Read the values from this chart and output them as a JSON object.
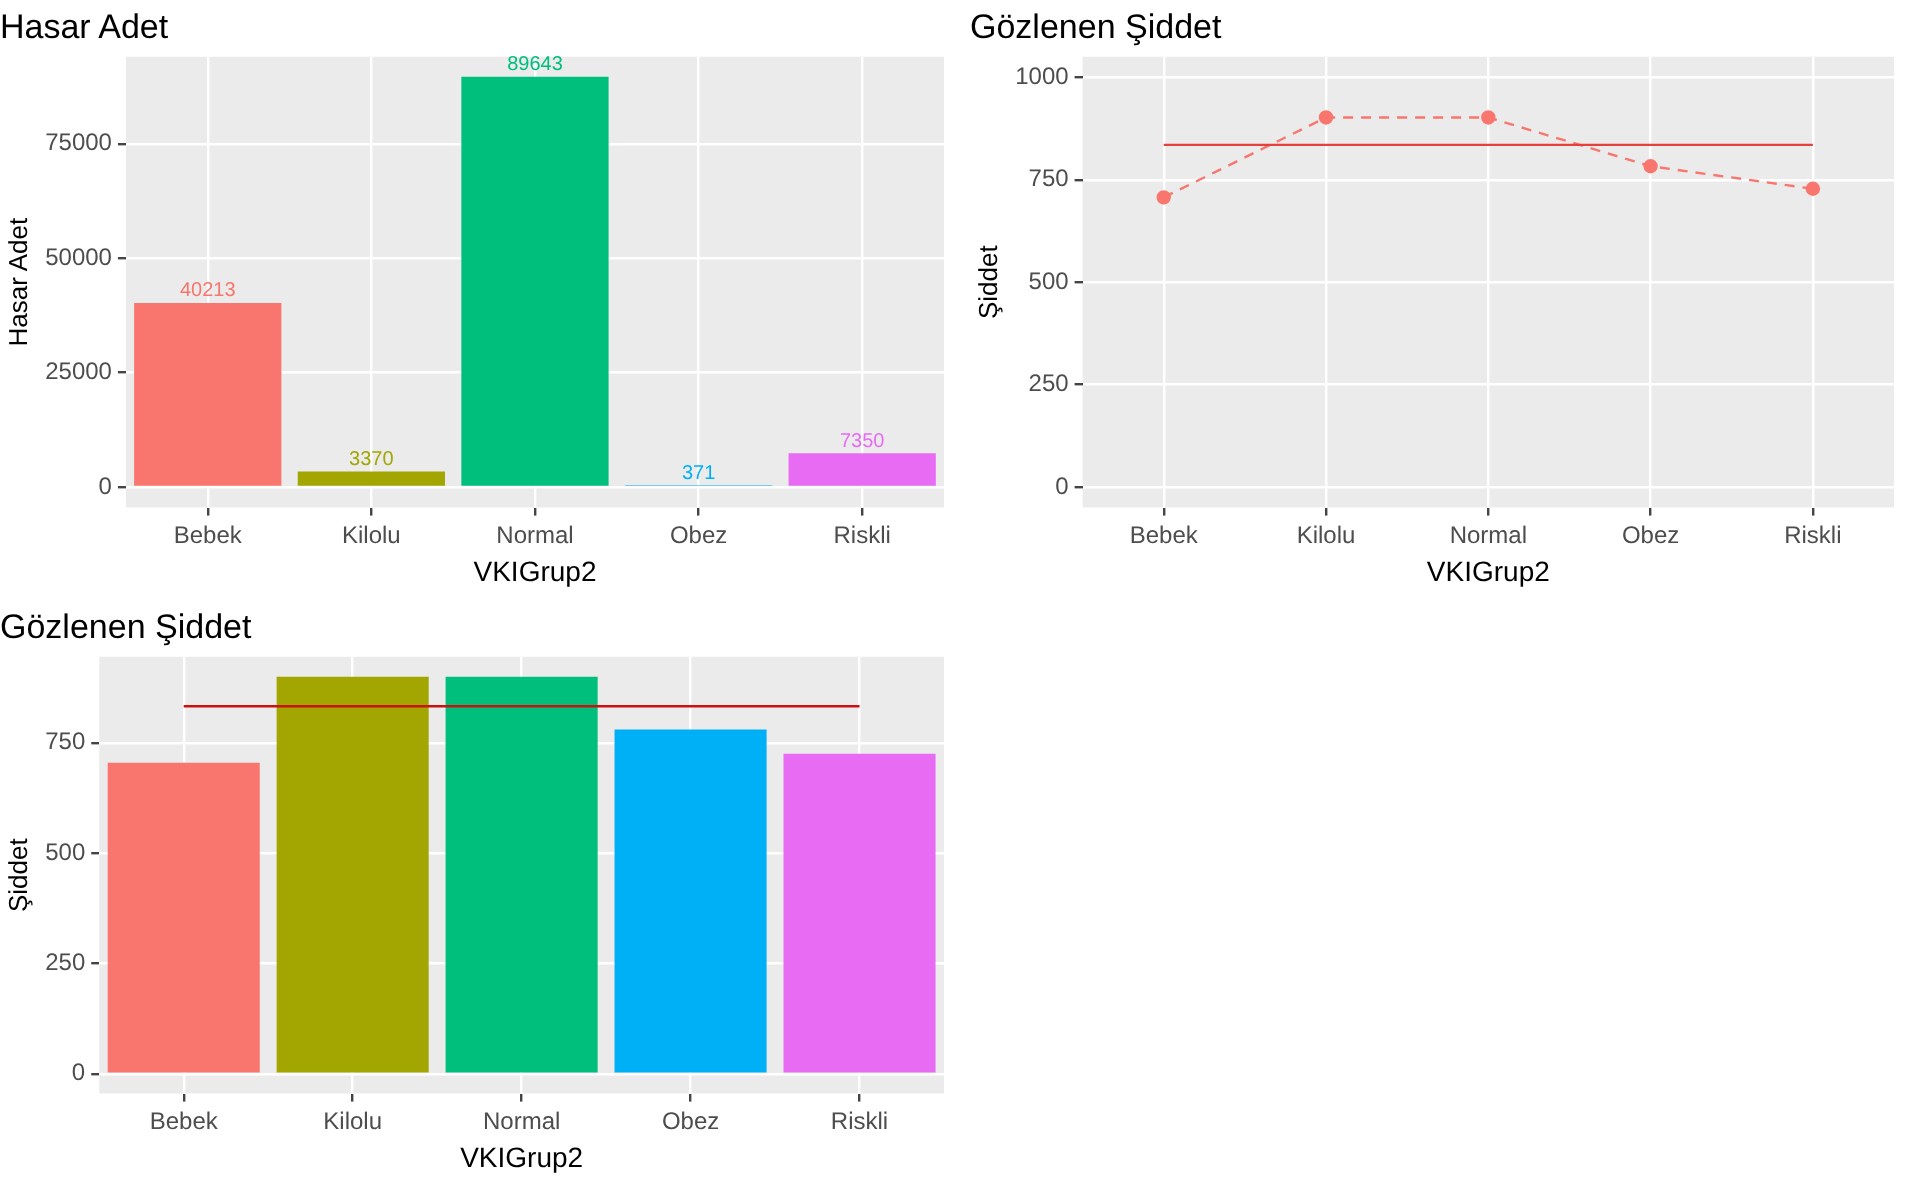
{
  "chart_data": [
    {
      "type": "bar",
      "title": "Hasar Adet",
      "xlabel": "VKIGrup2",
      "ylabel": "Hasar Adet",
      "categories": [
        "Bebek",
        "Kilolu",
        "Normal",
        "Obez",
        "Riskli"
      ],
      "values": [
        40213,
        3370,
        89643,
        371,
        7350
      ],
      "colors": [
        "#f8766d",
        "#a3a500",
        "#00bf7d",
        "#00b0f6",
        "#e76bf3"
      ],
      "data_labels": true,
      "ylim": [
        -4500,
        94000
      ],
      "yticks": [
        0,
        25000,
        50000,
        75000
      ],
      "grid": true,
      "legend": false
    },
    {
      "type": "line",
      "title": "Gözlenen Şiddet",
      "xlabel": "VKIGrup2",
      "ylabel": "Şiddet",
      "categories": [
        "Bebek",
        "Kilolu",
        "Normal",
        "Obez",
        "Riskli"
      ],
      "series": [
        {
          "color": "#f8766d",
          "values": [
            707,
            902,
            902,
            783,
            728
          ]
        }
      ],
      "marker": "circle",
      "line_style": "dashed",
      "ref_lines": [
        {
          "axis": "y",
          "value": 835,
          "color": "#e5403a"
        }
      ],
      "ylim": [
        -50,
        1050
      ],
      "yticks": [
        0,
        250,
        500,
        750,
        1000
      ],
      "grid": true,
      "legend": false
    },
    {
      "type": "bar",
      "title": "Gözlenen Şiddet",
      "xlabel": "VKIGrup2",
      "ylabel": "Şiddet",
      "categories": [
        "Bebek",
        "Kilolu",
        "Normal",
        "Obez",
        "Riskli"
      ],
      "values": [
        705,
        900,
        900,
        780,
        725
      ],
      "colors": [
        "#f8766d",
        "#a3a500",
        "#00bf7d",
        "#00b0f6",
        "#e76bf3"
      ],
      "ref_lines": [
        {
          "axis": "y",
          "value": 833,
          "color": "#cc1111"
        }
      ],
      "ylim": [
        -45,
        945
      ],
      "yticks": [
        0,
        250,
        500,
        750
      ],
      "grid": true,
      "legend": false
    }
  ]
}
